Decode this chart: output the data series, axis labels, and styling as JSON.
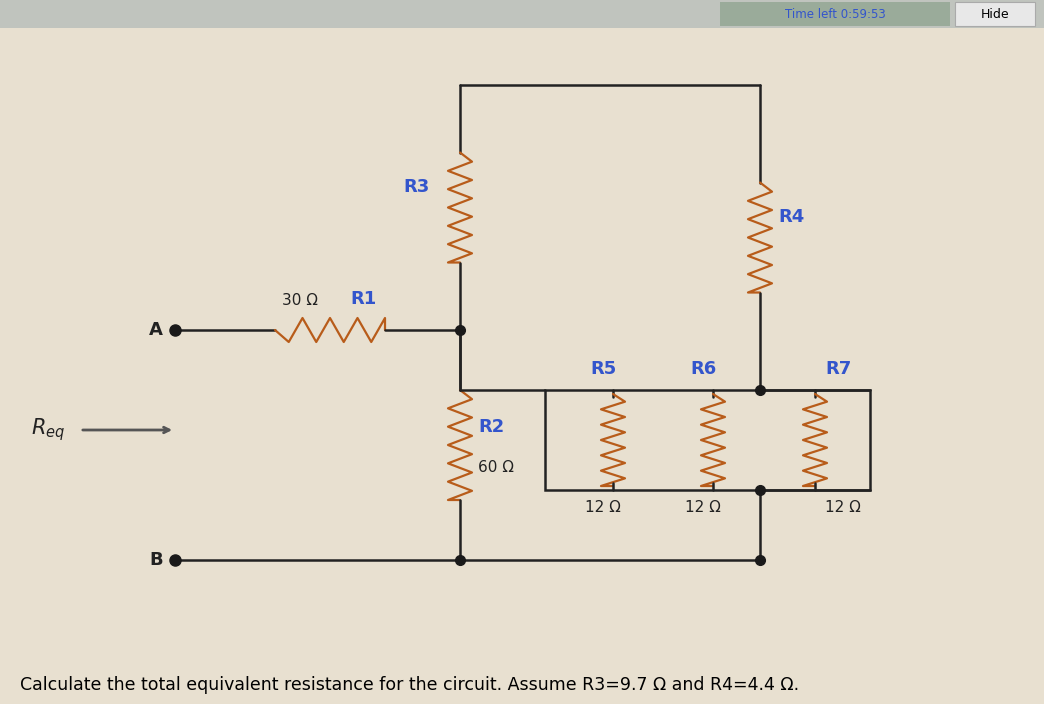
{
  "bg_color": "#e8e0d0",
  "wire_color": "#222222",
  "resistor_color": "#b85c1a",
  "dot_color": "#1a1a1a",
  "label_color": "#3355cc",
  "value_color": "#222222",
  "arrow_color": "#555555",
  "caption": "Calculate the total equivalent resistance for the circuit. Assume R3=9.7 Ω and R4=4.4 Ω.",
  "caption_fontsize": 12.5,
  "R1_label": "R1",
  "R1_value": "30 Ω",
  "R2_label": "R2",
  "R2_value": "60 Ω",
  "R3_label": "R3",
  "R4_label": "R4",
  "R5_label": "R5",
  "R5_value": "12 Ω",
  "R6_label": "R6",
  "R6_value": "12 Ω",
  "R7_label": "R7",
  "R7_value": "12 Ω",
  "node_A_label": "A",
  "node_B_label": "B",
  "timer_text": "Time left 0:59:53",
  "hide_text": "Hide"
}
